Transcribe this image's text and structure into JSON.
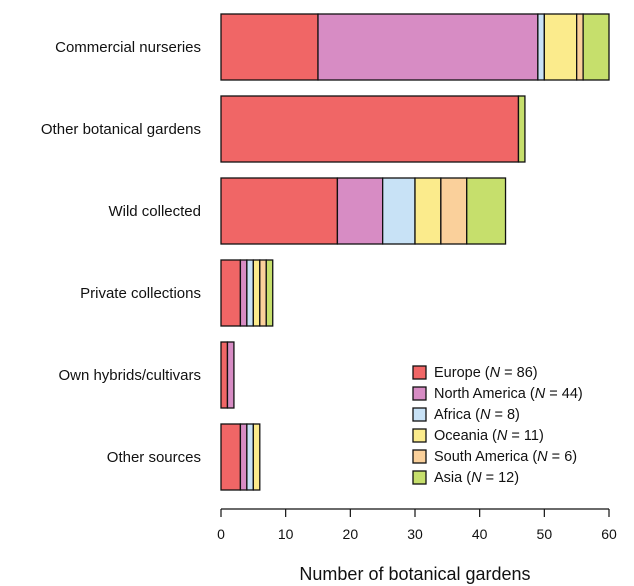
{
  "chart_data": {
    "type": "bar",
    "orientation": "horizontal",
    "stacked": true,
    "categories": [
      "Commercial nurseries",
      "Other botanical gardens",
      "Wild collected",
      "Private collections",
      "Own hybrids/cultivars",
      "Other sources"
    ],
    "series": [
      {
        "name": "Europe",
        "n": "86",
        "color": "#f06666",
        "values": [
          15,
          46,
          18,
          3,
          1,
          3
        ]
      },
      {
        "name": "North America",
        "n": "44",
        "color": "#d78cc4",
        "values": [
          34,
          0,
          7,
          1,
          1,
          1
        ]
      },
      {
        "name": "Africa",
        "n": "8",
        "color": "#c8e2f6",
        "values": [
          1,
          0,
          5,
          1,
          0,
          1
        ]
      },
      {
        "name": "Oceania",
        "n": "11",
        "color": "#fbeb8c",
        "values": [
          5,
          0,
          4,
          1,
          0,
          1
        ]
      },
      {
        "name": "South America",
        "n": "6",
        "color": "#fad09b",
        "values": [
          1,
          0,
          4,
          1,
          0,
          0
        ]
      },
      {
        "name": "Asia",
        "n": "12",
        "color": "#c6df6c",
        "values": [
          4,
          1,
          6,
          1,
          0,
          0
        ]
      }
    ],
    "xlabel": "Number of botanical gardens",
    "ylabel": "",
    "xlim": [
      0,
      60
    ],
    "xticks": [
      0,
      10,
      20,
      30,
      40,
      50,
      60
    ],
    "grid": false,
    "legend_position": "bottom-right"
  }
}
